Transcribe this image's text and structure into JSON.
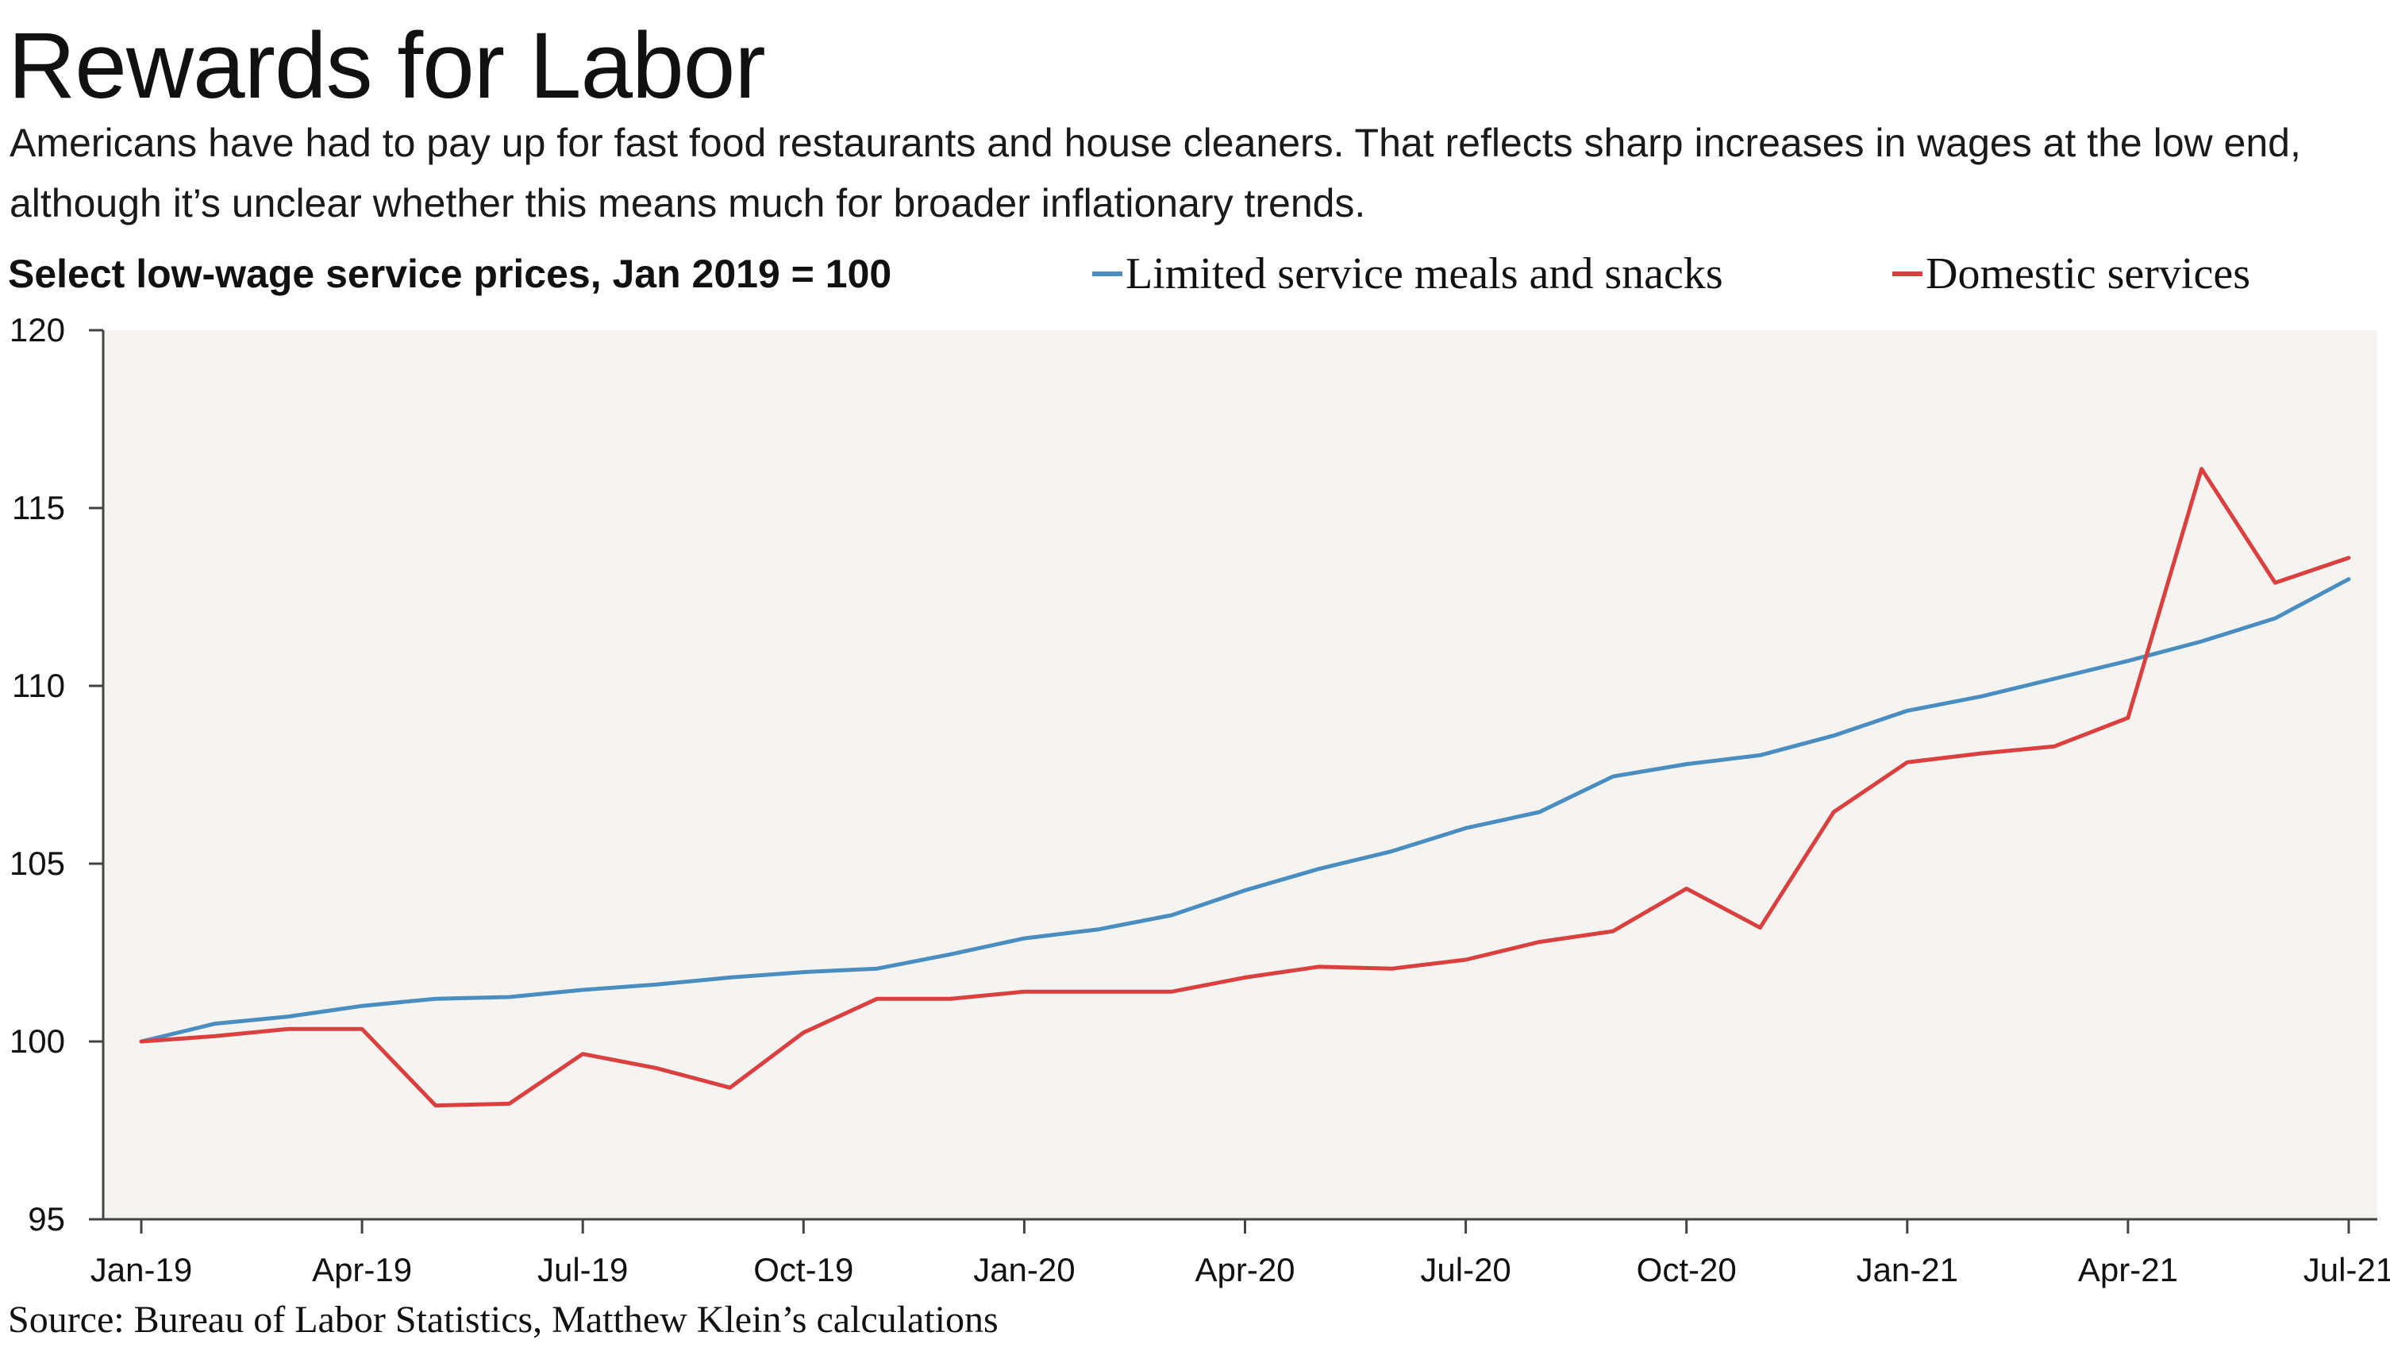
{
  "title": "Rewards for Labor",
  "subtitle": "Americans have had to pay up for fast food restaurants and house cleaners. That reflects sharp increases in wages at the low end, although it’s unclear whether this means much for broader inflationary trends.",
  "source": "Source: Bureau of Labor Statistics, Matthew Klein’s calculations",
  "colors": {
    "plot_background": "#f5f4f1",
    "axis": "#444444",
    "limited_service": "#4a8dc0",
    "domestic": "#d9403f"
  },
  "chart_data": {
    "type": "line",
    "title": "Select low-wage service prices, Jan 2019 = 100",
    "xlabel": "",
    "ylabel": "",
    "ylim": [
      95,
      120
    ],
    "yticks": [
      95,
      100,
      105,
      110,
      115,
      120
    ],
    "x": [
      "Jan-19",
      "Feb-19",
      "Mar-19",
      "Apr-19",
      "May-19",
      "Jun-19",
      "Jul-19",
      "Aug-19",
      "Sep-19",
      "Oct-19",
      "Nov-19",
      "Dec-19",
      "Jan-20",
      "Feb-20",
      "Mar-20",
      "Apr-20",
      "May-20",
      "Jun-20",
      "Jul-20",
      "Aug-20",
      "Sep-20",
      "Oct-20",
      "Nov-20",
      "Dec-20",
      "Jan-21",
      "Feb-21",
      "Mar-21",
      "Apr-21",
      "May-21",
      "Jun-21",
      "Jul-21"
    ],
    "xtick_labels": [
      "Jan-19",
      "Apr-19",
      "Jul-19",
      "Oct-19",
      "Jan-20",
      "Apr-20",
      "Jul-20",
      "Oct-20",
      "Jan-21",
      "Apr-21",
      "Jul-21"
    ],
    "grid": false,
    "legend_position": "top",
    "series": [
      {
        "name": "Limited service meals and snacks",
        "color": "#4a8dc0",
        "values": [
          100.0,
          100.5,
          100.7,
          101.0,
          101.2,
          101.25,
          101.45,
          101.6,
          101.8,
          101.95,
          102.05,
          102.45,
          102.9,
          103.15,
          103.55,
          104.25,
          104.85,
          105.35,
          106.0,
          106.45,
          107.45,
          107.8,
          108.05,
          108.6,
          109.3,
          109.7,
          110.2,
          110.7,
          111.25,
          111.9,
          113.0
        ]
      },
      {
        "name": "Domestic services",
        "color": "#d9403f",
        "values": [
          100.0,
          100.15,
          100.35,
          100.35,
          98.2,
          98.25,
          99.65,
          99.25,
          98.7,
          100.25,
          101.2,
          101.2,
          101.4,
          101.4,
          101.4,
          101.8,
          102.1,
          102.05,
          102.3,
          102.8,
          103.1,
          104.3,
          103.2,
          106.45,
          107.85,
          108.1,
          108.3,
          109.1,
          116.1,
          112.9,
          113.6
        ]
      }
    ]
  }
}
